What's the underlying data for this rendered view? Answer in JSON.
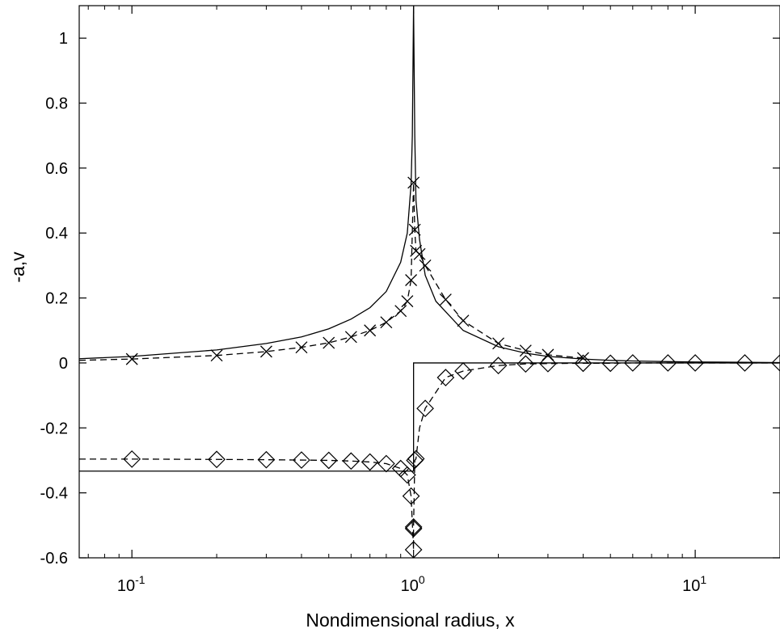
{
  "chart_data": {
    "type": "line",
    "xlabel": "Nondimensional radius, x",
    "ylabel": "-a,v",
    "xscale": "log",
    "xlim": [
      0.065,
      20
    ],
    "ylim": [
      -0.6,
      1.1
    ],
    "grid": false,
    "legend": "none",
    "x_ticks": [
      {
        "value": 0.1,
        "base": "10",
        "exp": "-1"
      },
      {
        "value": 1,
        "base": "10",
        "exp": "0"
      },
      {
        "value": 10,
        "base": "10",
        "exp": "1"
      }
    ],
    "y_ticks": [
      {
        "value": -0.6,
        "label": "-0.6"
      },
      {
        "value": -0.4,
        "label": "-0.4"
      },
      {
        "value": -0.2,
        "label": "-0.2"
      },
      {
        "value": 0,
        "label": "0"
      },
      {
        "value": 0.2,
        "label": "0.2"
      },
      {
        "value": 0.4,
        "label": "0.4"
      },
      {
        "value": 0.6,
        "label": "0.6"
      },
      {
        "value": 0.8,
        "label": "0.8"
      },
      {
        "value": 1,
        "label": "1"
      }
    ],
    "series": [
      {
        "style": "solid",
        "marker": "none",
        "color": "#000000",
        "x": [
          0.065,
          0.1,
          0.2,
          0.3,
          0.4,
          0.5,
          0.6,
          0.7,
          0.8,
          0.9,
          0.95,
          0.98,
          0.99,
          0.995,
          1.0,
          1.005,
          1.01,
          1.02,
          1.05,
          1.1,
          1.2,
          1.5,
          2,
          2.5,
          3,
          4,
          5,
          6,
          8,
          10,
          15,
          20
        ],
        "y": [
          0.013,
          0.02,
          0.04,
          0.06,
          0.08,
          0.105,
          0.135,
          0.17,
          0.22,
          0.31,
          0.4,
          0.55,
          0.7,
          0.9,
          1.1,
          0.9,
          0.7,
          0.5,
          0.38,
          0.27,
          0.19,
          0.1,
          0.05,
          0.03,
          0.02,
          0.012,
          0.008,
          0.006,
          0.004,
          0.003,
          0.002,
          0.001
        ]
      },
      {
        "style": "dashed",
        "marker": "x",
        "color": "#000000",
        "x": [
          0.065,
          0.1,
          0.2,
          0.3,
          0.4,
          0.5,
          0.6,
          0.7,
          0.8,
          0.9,
          0.95,
          0.98,
          1.0,
          1.01,
          1.02,
          1.05,
          1.1,
          1.3,
          1.5,
          2,
          2.5,
          3,
          4
        ],
        "y": [
          0.008,
          0.012,
          0.023,
          0.035,
          0.048,
          0.062,
          0.08,
          0.1,
          0.125,
          0.16,
          0.19,
          0.255,
          0.555,
          0.41,
          0.345,
          0.335,
          0.3,
          0.195,
          0.13,
          0.06,
          0.038,
          0.025,
          0.015
        ],
        "marker_x": [
          0.1,
          0.2,
          0.3,
          0.4,
          0.5,
          0.6,
          0.7,
          0.8,
          0.9,
          0.95,
          0.98,
          1.0,
          1.01,
          1.02,
          1.05,
          1.1,
          1.3,
          1.5,
          2,
          2.5,
          3,
          4
        ],
        "marker_y": [
          0.012,
          0.023,
          0.035,
          0.048,
          0.062,
          0.08,
          0.1,
          0.125,
          0.16,
          0.19,
          0.255,
          0.555,
          0.41,
          0.345,
          0.335,
          0.3,
          0.195,
          0.13,
          0.06,
          0.038,
          0.025,
          0.015
        ]
      },
      {
        "style": "solid",
        "marker": "none",
        "color": "#000000",
        "x": [
          0.065,
          1.0,
          1.0,
          20
        ],
        "y": [
          -0.333,
          -0.333,
          0.0,
          0.0
        ]
      },
      {
        "style": "dashed",
        "marker": "diamond",
        "color": "#000000",
        "x": [
          0.065,
          0.1,
          0.2,
          0.3,
          0.4,
          0.5,
          0.6,
          0.7,
          0.8,
          0.9,
          0.95,
          0.98,
          1.0,
          1.0,
          1.0,
          1.01,
          1.02,
          1.05,
          1.1,
          1.3,
          1.5,
          2,
          2.5,
          3,
          4,
          5,
          6,
          8,
          10,
          15,
          20
        ],
        "y": [
          -0.296,
          -0.296,
          -0.297,
          -0.298,
          -0.299,
          -0.3,
          -0.302,
          -0.305,
          -0.31,
          -0.325,
          -0.345,
          -0.41,
          -0.575,
          -0.51,
          -0.505,
          -0.3,
          -0.295,
          -0.2,
          -0.14,
          -0.045,
          -0.025,
          -0.008,
          -0.003,
          -0.002,
          -0.001,
          -0.001,
          0.0,
          0.0,
          0.0,
          0.0,
          0.0
        ],
        "marker_x": [
          0.1,
          0.2,
          0.3,
          0.4,
          0.5,
          0.6,
          0.7,
          0.8,
          0.9,
          0.95,
          0.98,
          1.0,
          1.0,
          1.0,
          1.01,
          1.02,
          1.1,
          1.3,
          1.5,
          2,
          2.5,
          3,
          4,
          5,
          6,
          8,
          10,
          15,
          20
        ],
        "marker_y": [
          -0.296,
          -0.297,
          -0.298,
          -0.299,
          -0.3,
          -0.302,
          -0.305,
          -0.31,
          -0.325,
          -0.345,
          -0.41,
          -0.575,
          -0.51,
          -0.505,
          -0.3,
          -0.295,
          -0.14,
          -0.045,
          -0.025,
          -0.008,
          -0.003,
          -0.002,
          -0.001,
          -0.001,
          0.0,
          0.0,
          0.0,
          0.0,
          0.0
        ]
      }
    ]
  }
}
